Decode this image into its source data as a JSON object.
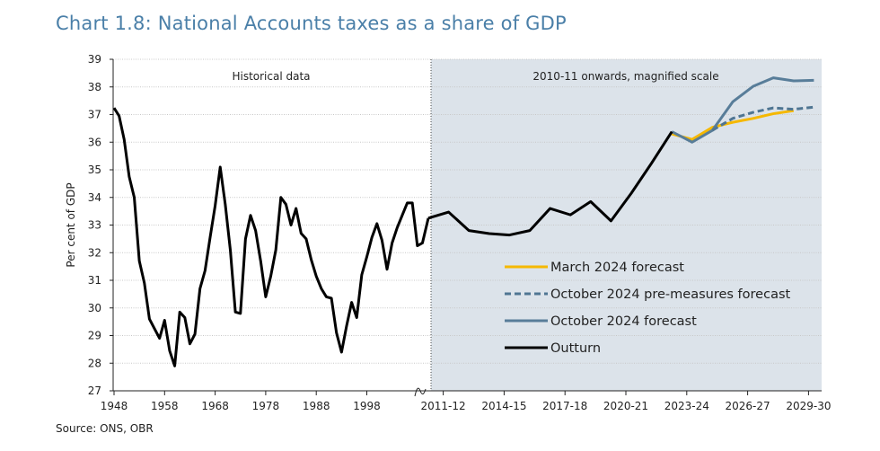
{
  "chart_data": {
    "type": "line",
    "title": "Chart 1.8: National Accounts taxes as a share of GDP",
    "ylabel": "Per cent of GDP",
    "ylim": [
      27,
      39
    ],
    "yticks": [
      27,
      28,
      29,
      30,
      31,
      32,
      33,
      34,
      35,
      36,
      37,
      38,
      39
    ],
    "grid": true,
    "legend_position": "bottom-right",
    "source": "Source: ONS, OBR",
    "panels": {
      "historical": {
        "label": "Historical data",
        "xticks": [
          "1948",
          "1958",
          "1968",
          "1978",
          "1988",
          "1998"
        ],
        "years": [
          1948,
          1949,
          1950,
          1951,
          1952,
          1953,
          1954,
          1955,
          1956,
          1957,
          1958,
          1959,
          1960,
          1961,
          1962,
          1963,
          1964,
          1965,
          1966,
          1967,
          1968,
          1969,
          1970,
          1971,
          1972,
          1973,
          1974,
          1975,
          1976,
          1977,
          1978,
          1979,
          1980,
          1981,
          1982,
          1983,
          1984,
          1985,
          1986,
          1987,
          1988,
          1989,
          1990,
          1991,
          1992,
          1993,
          1994,
          1995,
          1996,
          1997,
          1998,
          1999,
          2000,
          2001,
          2002,
          2003,
          2004,
          2005,
          2006,
          2007,
          2008,
          2009
        ],
        "values": [
          37.24,
          36.95,
          36.1,
          34.75,
          34.0,
          31.7,
          30.9,
          29.6,
          29.25,
          28.9,
          29.55,
          28.45,
          27.9,
          29.85,
          29.65,
          28.7,
          29.05,
          30.7,
          31.35,
          32.55,
          33.7,
          35.1,
          33.75,
          32.1,
          29.85,
          29.8,
          32.5,
          33.35,
          32.8,
          31.7,
          30.4,
          31.15,
          32.1,
          34.0,
          33.75,
          33.0,
          33.6,
          32.7,
          32.5,
          31.75,
          31.15,
          30.7,
          30.4,
          30.35,
          29.1,
          28.4,
          29.35,
          30.2,
          29.65,
          31.2,
          31.85,
          32.55,
          33.05,
          32.45,
          31.4,
          32.35,
          32.9,
          33.35,
          33.8,
          33.8,
          32.25,
          32.35
        ]
      },
      "magnified": {
        "label": "2010-11 onwards, magnified scale",
        "xticks": [
          "2011-12",
          "2014-15",
          "2017-18",
          "2020-21",
          "2023-24",
          "2026-27",
          "2029-30"
        ],
        "categories": [
          "2010-11",
          "2011-12",
          "2012-13",
          "2013-14",
          "2014-15",
          "2015-16",
          "2016-17",
          "2017-18",
          "2018-19",
          "2019-20",
          "2020-21",
          "2021-22",
          "2022-23",
          "2023-24",
          "2024-25",
          "2025-26",
          "2026-27",
          "2027-28",
          "2028-29",
          "2029-30"
        ],
        "series": [
          {
            "name": "March 2024 forecast",
            "color": "#f5b800",
            "style": "solid",
            "start": "2022-23",
            "values": [
              36.3,
              36.1,
              36.54,
              36.72,
              36.86,
              37.03,
              37.14
            ]
          },
          {
            "name": "October 2024 pre-measures forecast",
            "color": "#4f7592",
            "style": "dashed",
            "start": "2024-25",
            "values": [
              36.43,
              36.86,
              37.08,
              37.24,
              37.19,
              37.27
            ]
          },
          {
            "name": "October 2024 forecast",
            "color": "#587d99",
            "style": "solid",
            "start": "2022-23",
            "values": [
              36.38,
              36.0,
              36.43,
              37.46,
              38.02,
              38.33,
              38.22,
              38.24
            ]
          },
          {
            "name": "Outturn",
            "color": "#000000",
            "style": "solid",
            "start": "2010-11",
            "values": [
              33.25,
              33.47,
              32.8,
              32.69,
              32.64,
              32.8,
              33.6,
              33.37,
              33.85,
              33.15,
              34.15,
              35.24,
              36.38
            ]
          }
        ]
      }
    },
    "colors": {
      "title": "#4a7fa8",
      "shaded_panel": "#dce3ea"
    }
  }
}
